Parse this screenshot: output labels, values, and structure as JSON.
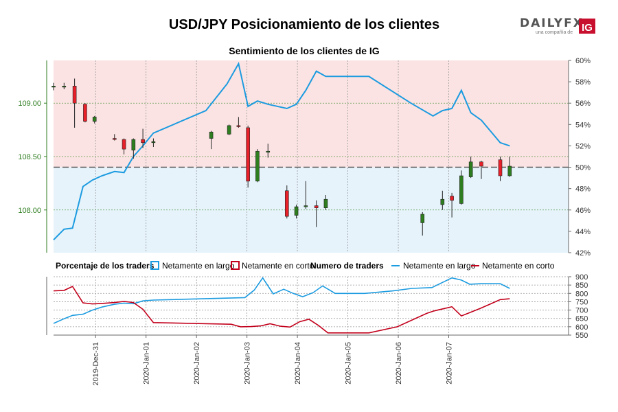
{
  "title": "USD/JPY Posicionamiento de los clientes",
  "brand": {
    "wordmark": "DAILYFX",
    "tagline": "una compañía de",
    "badge": "IG",
    "colors": {
      "wordmark": "#555555",
      "accent": "#e2231a",
      "badge_bg": "#c8102e"
    }
  },
  "colors": {
    "up": "#2e7d1f",
    "down": "#e8202a",
    "long": "#1b9be0",
    "short": "#c2001b",
    "long_fill": "#e6f3fb",
    "short_fill": "#fbe3e3",
    "price_axis": "#2e7d1f"
  },
  "chart_data": [
    {
      "type": "candlestick",
      "title": "Sentimiento de los clientes de IG",
      "ylim": [
        107.6,
        109.4
      ],
      "y2lim": [
        42,
        60
      ],
      "yticks": [
        108.0,
        108.5,
        109.0
      ],
      "ytick_labels": [
        "108.00",
        "108.50",
        "109.00"
      ],
      "y2ticks": [
        42,
        44,
        46,
        48,
        50,
        52,
        54,
        56,
        58,
        60
      ],
      "y2tick_labels": [
        "42%",
        "44%",
        "46%",
        "48%",
        "50%",
        "52%",
        "54%",
        "56%",
        "58%",
        "60%"
      ],
      "reference_line": 50,
      "x_range": [
        0,
        49
      ],
      "candles": [
        {
          "x": 0.0,
          "o": 109.15,
          "h": 109.19,
          "l": 109.12,
          "c": 109.16
        },
        {
          "x": 1.0,
          "o": 109.15,
          "h": 109.19,
          "l": 109.13,
          "c": 109.16
        },
        {
          "x": 2.0,
          "o": 109.16,
          "h": 109.23,
          "l": 108.77,
          "c": 109.0
        },
        {
          "x": 3.0,
          "o": 108.99,
          "h": 109.0,
          "l": 108.82,
          "c": 108.83
        },
        {
          "x": 3.9,
          "o": 108.83,
          "h": 108.88,
          "l": 108.81,
          "c": 108.87
        },
        {
          "x": 5.8,
          "o": 108.67,
          "h": 108.71,
          "l": 108.65,
          "c": 108.66
        },
        {
          "x": 6.7,
          "o": 108.66,
          "h": 108.67,
          "l": 108.52,
          "c": 108.57
        },
        {
          "x": 7.6,
          "o": 108.56,
          "h": 108.67,
          "l": 108.48,
          "c": 108.66
        },
        {
          "x": 8.5,
          "o": 108.66,
          "h": 108.76,
          "l": 108.58,
          "c": 108.63
        },
        {
          "x": 9.5,
          "o": 108.63,
          "h": 108.67,
          "l": 108.59,
          "c": 108.64
        },
        {
          "x": 15.0,
          "o": 108.67,
          "h": 108.74,
          "l": 108.57,
          "c": 108.73
        },
        {
          "x": 16.7,
          "o": 108.71,
          "h": 108.8,
          "l": 108.7,
          "c": 108.79
        },
        {
          "x": 17.6,
          "o": 108.79,
          "h": 108.87,
          "l": 108.77,
          "c": 108.78
        },
        {
          "x": 18.5,
          "o": 108.77,
          "h": 108.79,
          "l": 108.21,
          "c": 108.27
        },
        {
          "x": 19.4,
          "o": 108.27,
          "h": 108.57,
          "l": 108.26,
          "c": 108.55
        },
        {
          "x": 20.4,
          "o": 108.55,
          "h": 108.62,
          "l": 108.49,
          "c": 108.55
        },
        {
          "x": 22.2,
          "o": 108.18,
          "h": 108.23,
          "l": 107.92,
          "c": 107.94
        },
        {
          "x": 23.1,
          "o": 107.95,
          "h": 108.05,
          "l": 107.92,
          "c": 108.03
        },
        {
          "x": 24.0,
          "o": 108.03,
          "h": 108.27,
          "l": 108.01,
          "c": 108.04
        },
        {
          "x": 25.0,
          "o": 108.04,
          "h": 108.09,
          "l": 107.84,
          "c": 108.02
        },
        {
          "x": 25.9,
          "o": 108.02,
          "h": 108.14,
          "l": 108.0,
          "c": 108.1
        },
        {
          "x": 35.1,
          "o": 107.88,
          "h": 107.98,
          "l": 107.76,
          "c": 107.96
        },
        {
          "x": 37.0,
          "o": 108.05,
          "h": 108.18,
          "l": 108.0,
          "c": 108.1
        },
        {
          "x": 37.9,
          "o": 108.13,
          "h": 108.16,
          "l": 107.93,
          "c": 108.09
        },
        {
          "x": 38.8,
          "o": 108.06,
          "h": 108.37,
          "l": 108.05,
          "c": 108.32
        },
        {
          "x": 39.7,
          "o": 108.31,
          "h": 108.5,
          "l": 108.3,
          "c": 108.45
        },
        {
          "x": 40.7,
          "o": 108.45,
          "h": 108.46,
          "l": 108.29,
          "c": 108.41
        },
        {
          "x": 42.5,
          "o": 108.47,
          "h": 108.5,
          "l": 108.27,
          "c": 108.32
        },
        {
          "x": 43.4,
          "o": 108.32,
          "h": 108.5,
          "l": 108.31,
          "c": 108.41
        }
      ],
      "long_pct_series": {
        "name": "Netamente en largo (%)",
        "x": [
          0.0,
          1.0,
          1.8,
          2.8,
          3.7,
          4.6,
          5.8,
          6.7,
          7.6,
          8.5,
          9.5,
          14.5,
          16.5,
          17.6,
          18.5,
          19.4,
          20.4,
          22.2,
          23.1,
          24.0,
          25.0,
          25.9,
          27.5,
          30.0,
          34.0,
          36.1,
          37.0,
          37.9,
          38.8,
          39.7,
          40.7,
          42.5,
          43.4
        ],
        "y": [
          43.2,
          44.2,
          44.3,
          48.2,
          48.8,
          49.2,
          49.6,
          49.5,
          51.0,
          52.0,
          53.2,
          55.3,
          57.8,
          59.7,
          55.7,
          56.2,
          55.9,
          55.5,
          55.9,
          57.2,
          59.0,
          58.5,
          58.5,
          58.5,
          56.0,
          54.8,
          55.3,
          55.5,
          57.2,
          55.1,
          54.4,
          52.3,
          52.0
        ]
      },
      "short_pct_series": {
        "name": "Netamente en corto (%)",
        "x": [
          0.0,
          49.0
        ],
        "y": [
          null,
          null
        ]
      }
    },
    {
      "type": "line",
      "title": "Numero de traders",
      "legend_title": "Porcentaje de los traders",
      "ylim": [
        550,
        900
      ],
      "yticks": [
        550,
        600,
        650,
        700,
        750,
        800,
        850,
        900
      ],
      "ytick_labels": [
        "550",
        "600",
        "650",
        "700",
        "750",
        "800",
        "850",
        "900"
      ],
      "x_range": [
        0,
        49
      ],
      "series": [
        {
          "name": "Netamente en largo",
          "x": [
            0.0,
            1.0,
            1.8,
            2.8,
            3.7,
            4.6,
            5.8,
            6.7,
            7.6,
            8.5,
            9.5,
            18.2,
            19.1,
            19.9,
            20.9,
            21.9,
            22.8,
            23.7,
            24.7,
            25.6,
            26.8,
            29.6,
            32.3,
            34.1,
            36.0,
            37.9,
            38.8,
            39.6,
            40.6,
            42.5,
            43.4
          ],
          "y": [
            620,
            648,
            668,
            675,
            700,
            718,
            735,
            742,
            738,
            755,
            760,
            775,
            820,
            893,
            797,
            825,
            800,
            780,
            805,
            845,
            800,
            800,
            815,
            830,
            835,
            893,
            880,
            855,
            858,
            858,
            830
          ]
        },
        {
          "name": "Netamente en corto",
          "x": [
            0.0,
            1.0,
            1.8,
            2.8,
            3.7,
            4.6,
            5.8,
            6.7,
            7.6,
            8.5,
            9.5,
            16.9,
            17.8,
            18.8,
            19.7,
            20.6,
            21.6,
            22.5,
            23.4,
            24.3,
            25.2,
            26.1,
            27.5,
            30.0,
            32.7,
            35.5,
            36.2,
            37.9,
            38.8,
            39.6,
            40.6,
            41.5,
            42.5,
            43.4
          ],
          "y": [
            815,
            818,
            842,
            743,
            737,
            740,
            745,
            752,
            745,
            705,
            625,
            615,
            600,
            601,
            605,
            618,
            603,
            598,
            630,
            645,
            608,
            563,
            563,
            563,
            600,
            680,
            695,
            720,
            665,
            685,
            710,
            735,
            763,
            768
          ]
        }
      ],
      "x_tick_labels": [
        "2019-Dec-31",
        "2020-Jan-01",
        "2020-Jan-02",
        "2020-Jan-03",
        "2020-Jan-04",
        "2020-Jan-05",
        "2020-Jan-06",
        "2020-Jan-07"
      ],
      "x_ticks": [
        4.0,
        8.8,
        13.6,
        18.4,
        23.2,
        28.0,
        32.8,
        37.6
      ],
      "legend": {
        "pct_title": "Porcentaje de los traders",
        "pct_long": "Netamente en largo",
        "pct_short": "Netamente en corto",
        "count_title": "Numero de traders",
        "count_long": "Netamente en largo",
        "count_short": "Netamente en corto"
      }
    }
  ]
}
